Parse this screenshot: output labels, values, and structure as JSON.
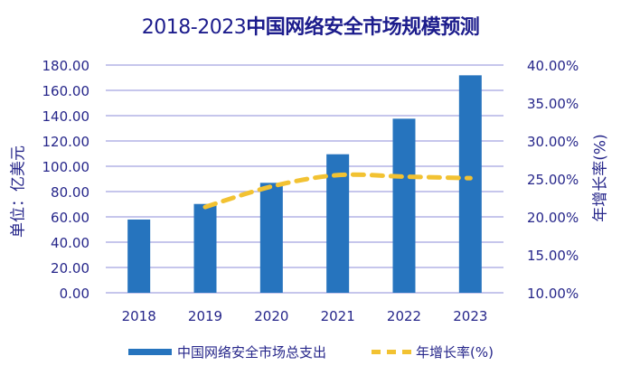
{
  "title_prefix": "2018-2023",
  "title_main": "中国网络安全市场规模预测",
  "colors": {
    "bar": "#2674be",
    "line": "#f2c232",
    "text": "#26268a",
    "grid": "#b4b4e6"
  },
  "chart_data": {
    "type": "bar",
    "title": "2018-2023中国网络安全市场规模预测",
    "categories": [
      "2018",
      "2019",
      "2020",
      "2021",
      "2022",
      "2023"
    ],
    "ylabel": "单位：亿美元",
    "y2label": "年增长率(%)",
    "ylim": [
      0,
      180
    ],
    "y2lim": [
      10,
      40
    ],
    "yticks": [
      "0.00",
      "20.00",
      "40.00",
      "60.00",
      "80.00",
      "100.00",
      "120.00",
      "140.00",
      "160.00",
      "180.00"
    ],
    "y2ticks": [
      "10.00%",
      "15.00%",
      "20.00%",
      "25.00%",
      "30.00%",
      "35.00%",
      "40.00%"
    ],
    "grid": true,
    "legend_position": "bottom",
    "series": [
      {
        "name": "中国网络安全市场总支出",
        "type": "bar",
        "axis": "left",
        "values": [
          57.9,
          70.2,
          86.9,
          109.5,
          137.6,
          171.9
        ]
      },
      {
        "name": "年增长率(%)",
        "type": "line",
        "style": "dashed",
        "axis": "right",
        "values": [
          null,
          21.3,
          24.0,
          25.5,
          25.3,
          25.1
        ]
      }
    ]
  }
}
